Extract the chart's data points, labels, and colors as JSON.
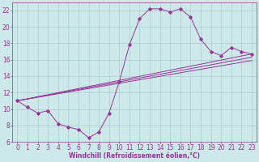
{
  "bg_color": "#cce8e8",
  "grid_color": "#aacccc",
  "line_color": "#993399",
  "marker_color": "#993399",
  "xlabel": "Windchill (Refroidissement éolien,°C)",
  "xlabel_fontsize": 5.5,
  "tick_fontsize": 5.5,
  "xlim": [
    -0.5,
    23.5
  ],
  "ylim": [
    6,
    23
  ],
  "yticks": [
    6,
    8,
    10,
    12,
    14,
    16,
    18,
    20,
    22
  ],
  "xticks": [
    0,
    1,
    2,
    3,
    4,
    5,
    6,
    7,
    8,
    9,
    10,
    11,
    12,
    13,
    14,
    15,
    16,
    17,
    18,
    19,
    20,
    21,
    22,
    23
  ],
  "series1_x": [
    0,
    1,
    2,
    3,
    4,
    5,
    6,
    7,
    8,
    9,
    10,
    11,
    12,
    13,
    14,
    15,
    16,
    17,
    18,
    19,
    20,
    21,
    22,
    23
  ],
  "series1_y": [
    11.0,
    10.2,
    9.5,
    9.8,
    8.2,
    7.8,
    7.5,
    6.5,
    7.2,
    9.5,
    13.3,
    17.8,
    21.0,
    22.2,
    22.2,
    21.8,
    22.2,
    21.2,
    18.5,
    17.0,
    16.5,
    17.5,
    17.0,
    16.7
  ],
  "series2_x": [
    0,
    23
  ],
  "series2_y": [
    11.0,
    16.7
  ],
  "series3_x": [
    0,
    23
  ],
  "series3_y": [
    11.0,
    16.3
  ],
  "series4_x": [
    0,
    23
  ],
  "series4_y": [
    11.0,
    15.9
  ],
  "lw": 0.7,
  "ms": 1.8
}
